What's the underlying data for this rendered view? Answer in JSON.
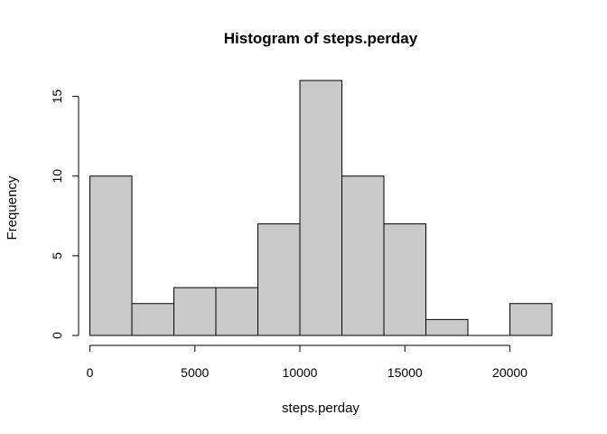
{
  "chart_data": {
    "type": "bar",
    "title": "Histogram of steps.perday",
    "xlabel": "steps.perday",
    "ylabel": "Frequency",
    "bins": [
      {
        "from": 0,
        "to": 2000,
        "count": 10
      },
      {
        "from": 2000,
        "to": 4000,
        "count": 2
      },
      {
        "from": 4000,
        "to": 6000,
        "count": 3
      },
      {
        "from": 6000,
        "to": 8000,
        "count": 3
      },
      {
        "from": 8000,
        "to": 10000,
        "count": 7
      },
      {
        "from": 10000,
        "to": 12000,
        "count": 16
      },
      {
        "from": 12000,
        "to": 14000,
        "count": 10
      },
      {
        "from": 14000,
        "to": 16000,
        "count": 7
      },
      {
        "from": 16000,
        "to": 18000,
        "count": 1
      },
      {
        "from": 18000,
        "to": 20000,
        "count": 0
      },
      {
        "from": 20000,
        "to": 22000,
        "count": 2
      }
    ],
    "xlim": [
      0,
      22000
    ],
    "ylim": [
      0,
      16
    ],
    "x_ticks": [
      0,
      5000,
      10000,
      15000,
      20000
    ],
    "x_tick_labels": [
      "0",
      "5000",
      "10000",
      "15000",
      "20000"
    ],
    "y_ticks": [
      0,
      5,
      10,
      15
    ],
    "y_tick_labels": [
      "0",
      "5",
      "10",
      "15"
    ],
    "bar_fill": "#c9c9c9",
    "grid": false
  }
}
